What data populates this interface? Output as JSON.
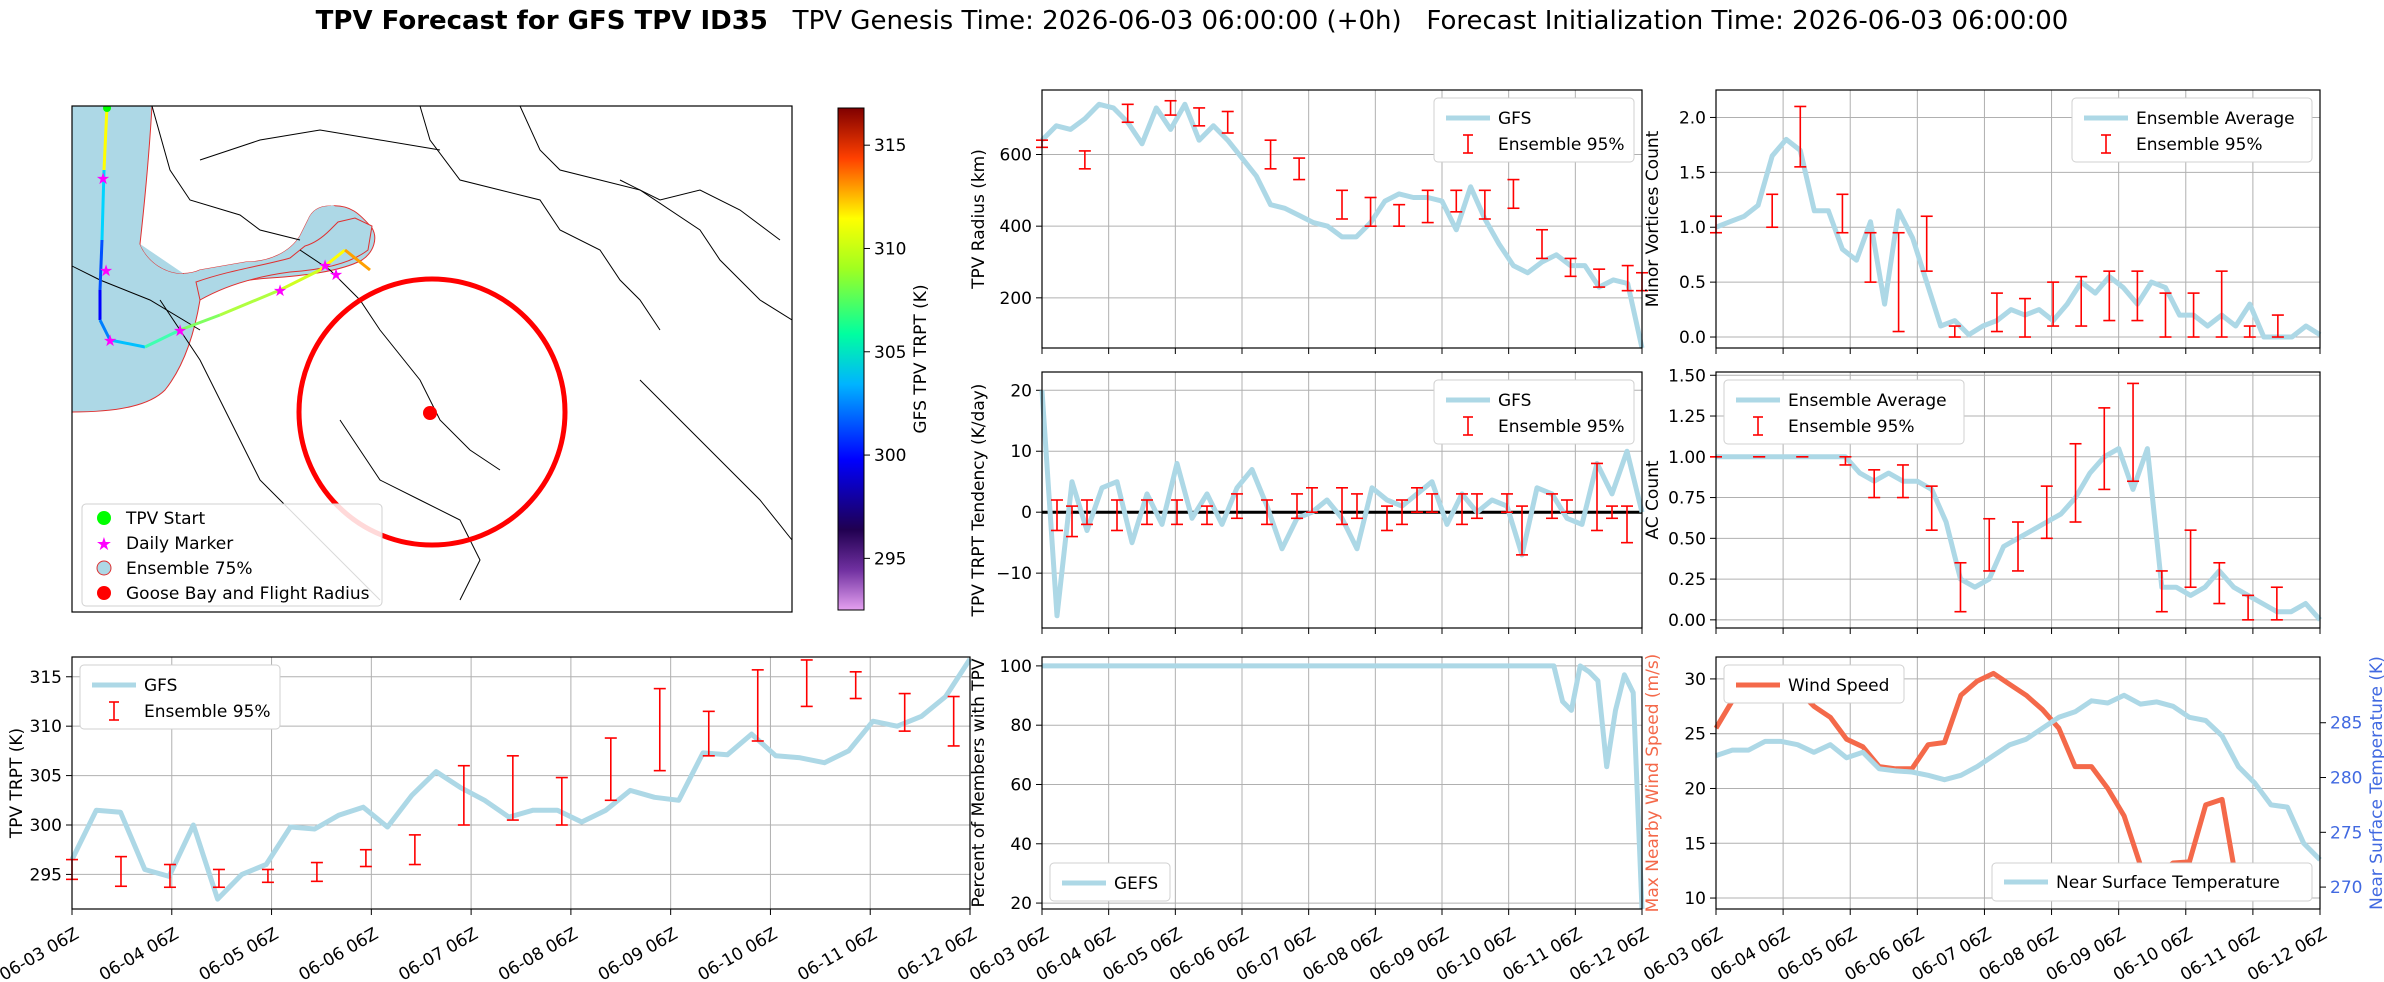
{
  "title": {
    "bold": "TPV Forecast for GFS TPV ID35",
    "rest": "   TPV Genesis Time: 2026-06-03 06:00:00 (+0h)   Forecast Initialization Time: 2026-06-03 06:00:00"
  },
  "colors": {
    "gfs_line": "#add8e6",
    "errorbar": "#ff0000",
    "wind": "#f4694a",
    "temp_axis": "#4169e1",
    "ensemble_fill": "#add8e6",
    "goose_bay": "#ff0000",
    "start_marker": "#00ff00",
    "daily_marker": "#ff00ff"
  },
  "map": {
    "colorbar_label": "GFS TPV TRPT (K)",
    "colorbar_ticks": [
      295,
      300,
      305,
      310,
      315
    ],
    "colorbar_range": [
      292.5,
      316.8
    ],
    "legend": [
      {
        "label": "TPV Start",
        "icon": "green-circle"
      },
      {
        "label": "Daily Marker",
        "icon": "magenta-star"
      },
      {
        "label": "Ensemble 75%",
        "icon": "lightblue-circle"
      },
      {
        "label": "Goose Bay and Flight Radius",
        "icon": "red-circle"
      }
    ]
  },
  "chart_data": [
    {
      "id": "radius",
      "type": "line",
      "ylabel": "TPV Radius (km)",
      "ylim": [
        60,
        780
      ],
      "yticks": [
        200,
        400,
        600
      ],
      "legend": [
        "GFS",
        "Ensemble 95%"
      ],
      "series": [
        {
          "name": "GFS",
          "values": [
            640,
            680,
            670,
            700,
            740,
            730,
            690,
            630,
            730,
            670,
            740,
            640,
            680,
            640,
            590,
            540,
            460,
            450,
            430,
            410,
            400,
            370,
            370,
            410,
            470,
            490,
            480,
            480,
            470,
            390,
            510,
            420,
            350,
            290,
            270,
            300,
            320,
            290,
            290,
            230,
            250,
            240,
            60
          ]
        }
      ],
      "errorbars": [
        {
          "i": 0,
          "lo": 620,
          "hi": 640
        },
        {
          "i": 3,
          "lo": 560,
          "hi": 610
        },
        {
          "i": 6,
          "lo": 690,
          "hi": 740
        },
        {
          "i": 9,
          "lo": 710,
          "hi": 750
        },
        {
          "i": 11,
          "lo": 680,
          "hi": 730
        },
        {
          "i": 13,
          "lo": 660,
          "hi": 720
        },
        {
          "i": 16,
          "lo": 560,
          "hi": 640
        },
        {
          "i": 18,
          "lo": 530,
          "hi": 590
        },
        {
          "i": 21,
          "lo": 420,
          "hi": 500
        },
        {
          "i": 23,
          "lo": 400,
          "hi": 480
        },
        {
          "i": 25,
          "lo": 400,
          "hi": 460
        },
        {
          "i": 27,
          "lo": 410,
          "hi": 500
        },
        {
          "i": 29,
          "lo": 440,
          "hi": 500
        },
        {
          "i": 31,
          "lo": 420,
          "hi": 500
        },
        {
          "i": 33,
          "lo": 450,
          "hi": 530
        },
        {
          "i": 35,
          "lo": 310,
          "hi": 390
        },
        {
          "i": 37,
          "lo": 260,
          "hi": 310
        },
        {
          "i": 39,
          "lo": 230,
          "hi": 280
        },
        {
          "i": 41,
          "lo": 220,
          "hi": 290
        },
        {
          "i": 42,
          "lo": 220,
          "hi": 270
        }
      ]
    },
    {
      "id": "minor",
      "type": "line",
      "ylabel": "Minor Vortices Count",
      "ylim": [
        -0.1,
        2.25
      ],
      "yticks": [
        0.0,
        0.5,
        1.0,
        1.5,
        2.0
      ],
      "legend": [
        "Ensemble Average",
        "Ensemble 95%"
      ],
      "series": [
        {
          "name": "Ensemble Average",
          "values": [
            1.0,
            1.05,
            1.1,
            1.2,
            1.65,
            1.8,
            1.7,
            1.15,
            1.15,
            0.8,
            0.7,
            1.05,
            0.3,
            1.15,
            0.9,
            0.5,
            0.1,
            0.15,
            0.02,
            0.1,
            0.15,
            0.25,
            0.2,
            0.25,
            0.15,
            0.3,
            0.5,
            0.4,
            0.55,
            0.45,
            0.3,
            0.5,
            0.45,
            0.2,
            0.2,
            0.1,
            0.2,
            0.1,
            0.3,
            0.0,
            0.0,
            0.0,
            0.1,
            0.02
          ]
        }
      ],
      "errorbars": [
        {
          "i": 0,
          "lo": 0.95,
          "hi": 1.1
        },
        {
          "i": 4,
          "lo": 1.0,
          "hi": 1.3
        },
        {
          "i": 6,
          "lo": 1.55,
          "hi": 2.1
        },
        {
          "i": 9,
          "lo": 0.95,
          "hi": 1.3
        },
        {
          "i": 11,
          "lo": 0.5,
          "hi": 0.95
        },
        {
          "i": 13,
          "lo": 0.05,
          "hi": 0.95
        },
        {
          "i": 15,
          "lo": 0.6,
          "hi": 1.1
        },
        {
          "i": 17,
          "lo": 0.0,
          "hi": 0.1
        },
        {
          "i": 20,
          "lo": 0.05,
          "hi": 0.4
        },
        {
          "i": 22,
          "lo": 0.0,
          "hi": 0.35
        },
        {
          "i": 24,
          "lo": 0.1,
          "hi": 0.5
        },
        {
          "i": 26,
          "lo": 0.1,
          "hi": 0.55
        },
        {
          "i": 28,
          "lo": 0.15,
          "hi": 0.6
        },
        {
          "i": 30,
          "lo": 0.15,
          "hi": 0.6
        },
        {
          "i": 32,
          "lo": 0.0,
          "hi": 0.4
        },
        {
          "i": 34,
          "lo": 0.0,
          "hi": 0.4
        },
        {
          "i": 36,
          "lo": 0.0,
          "hi": 0.6
        },
        {
          "i": 38,
          "lo": 0.0,
          "hi": 0.1
        },
        {
          "i": 40,
          "lo": 0.0,
          "hi": 0.2
        }
      ]
    },
    {
      "id": "tendency",
      "type": "line",
      "ylabel": "TPV TRPT Tendency (K/day)",
      "ylim": [
        -19,
        23
      ],
      "yticks": [
        -10,
        0,
        10,
        20
      ],
      "legend": [
        "GFS",
        "Ensemble 95%"
      ],
      "zero_line": true,
      "series": [
        {
          "name": "GFS",
          "values": [
            20,
            -17,
            5,
            -3,
            4,
            5,
            -5,
            3,
            -2,
            8,
            -1,
            3,
            -2,
            4,
            7,
            1,
            -6,
            -1,
            0,
            2,
            -1,
            -6,
            4,
            2,
            1,
            3,
            5,
            -2,
            3,
            0,
            2,
            1,
            -7,
            4,
            3,
            -1,
            -2,
            8,
            3,
            10,
            0
          ]
        }
      ],
      "errorbars": [
        {
          "i": 1,
          "lo": -3,
          "hi": 2
        },
        {
          "i": 2,
          "lo": -4,
          "hi": 1
        },
        {
          "i": 3,
          "lo": -2,
          "hi": 2
        },
        {
          "i": 5,
          "lo": -3,
          "hi": 2
        },
        {
          "i": 7,
          "lo": -2,
          "hi": 2
        },
        {
          "i": 9,
          "lo": -2,
          "hi": 2
        },
        {
          "i": 11,
          "lo": -2,
          "hi": 1
        },
        {
          "i": 13,
          "lo": -1,
          "hi": 3
        },
        {
          "i": 15,
          "lo": -2,
          "hi": 2
        },
        {
          "i": 17,
          "lo": -1,
          "hi": 3
        },
        {
          "i": 18,
          "lo": 0,
          "hi": 4
        },
        {
          "i": 20,
          "lo": -2,
          "hi": 4
        },
        {
          "i": 21,
          "lo": -1,
          "hi": 3
        },
        {
          "i": 23,
          "lo": -3,
          "hi": 1
        },
        {
          "i": 24,
          "lo": -2,
          "hi": 2
        },
        {
          "i": 25,
          "lo": 0,
          "hi": 4
        },
        {
          "i": 26,
          "lo": 0,
          "hi": 3
        },
        {
          "i": 28,
          "lo": -2,
          "hi": 3
        },
        {
          "i": 29,
          "lo": -1,
          "hi": 3
        },
        {
          "i": 31,
          "lo": 0,
          "hi": 3
        },
        {
          "i": 32,
          "lo": -7,
          "hi": 1
        },
        {
          "i": 34,
          "lo": -1,
          "hi": 3
        },
        {
          "i": 35,
          "lo": 0,
          "hi": 2
        },
        {
          "i": 37,
          "lo": -3,
          "hi": 8
        },
        {
          "i": 38,
          "lo": -1,
          "hi": 1
        },
        {
          "i": 39,
          "lo": -5,
          "hi": 1
        }
      ]
    },
    {
      "id": "ac",
      "type": "line",
      "ylabel": "AC Count",
      "ylim": [
        -0.05,
        1.52
      ],
      "yticks": [
        0.0,
        0.25,
        0.5,
        0.75,
        1.0,
        1.25,
        1.5
      ],
      "legend": [
        "Ensemble Average",
        "Ensemble 95%"
      ],
      "series": [
        {
          "name": "Ensemble Average",
          "values": [
            1.0,
            1.0,
            1.0,
            1.0,
            1.0,
            1.0,
            1.0,
            1.0,
            1.0,
            1.0,
            0.9,
            0.85,
            0.9,
            0.85,
            0.85,
            0.8,
            0.6,
            0.25,
            0.2,
            0.25,
            0.45,
            0.5,
            0.55,
            0.6,
            0.65,
            0.75,
            0.9,
            1.0,
            1.05,
            0.8,
            1.05,
            0.2,
            0.2,
            0.15,
            0.2,
            0.3,
            0.2,
            0.15,
            0.1,
            0.05,
            0.05,
            0.1,
            0.0
          ]
        }
      ],
      "errorbars": [
        {
          "i": 0,
          "lo": 1.0,
          "hi": 1.0
        },
        {
          "i": 3,
          "lo": 1.0,
          "hi": 1.0
        },
        {
          "i": 6,
          "lo": 1.0,
          "hi": 1.0
        },
        {
          "i": 9,
          "lo": 0.95,
          "hi": 1.0
        },
        {
          "i": 11,
          "lo": 0.75,
          "hi": 0.92
        },
        {
          "i": 13,
          "lo": 0.75,
          "hi": 0.95
        },
        {
          "i": 15,
          "lo": 0.55,
          "hi": 0.82
        },
        {
          "i": 17,
          "lo": 0.05,
          "hi": 0.35
        },
        {
          "i": 19,
          "lo": 0.3,
          "hi": 0.62
        },
        {
          "i": 21,
          "lo": 0.3,
          "hi": 0.6
        },
        {
          "i": 23,
          "lo": 0.5,
          "hi": 0.82
        },
        {
          "i": 25,
          "lo": 0.6,
          "hi": 1.08
        },
        {
          "i": 27,
          "lo": 0.8,
          "hi": 1.3
        },
        {
          "i": 29,
          "lo": 0.85,
          "hi": 1.45
        },
        {
          "i": 31,
          "lo": 0.05,
          "hi": 0.3
        },
        {
          "i": 33,
          "lo": 0.2,
          "hi": 0.55
        },
        {
          "i": 35,
          "lo": 0.1,
          "hi": 0.35
        },
        {
          "i": 37,
          "lo": 0.0,
          "hi": 0.15
        },
        {
          "i": 39,
          "lo": 0.0,
          "hi": 0.2
        }
      ]
    },
    {
      "id": "trpt",
      "type": "line",
      "ylabel": "TPV TRPT (K)",
      "ylim": [
        291.5,
        317
      ],
      "yticks": [
        295,
        300,
        305,
        310,
        315
      ],
      "xticks": [
        "06-03 06Z",
        "06-04 06Z",
        "06-05 06Z",
        "06-06 06Z",
        "06-07 06Z",
        "06-08 06Z",
        "06-09 06Z",
        "06-10 06Z",
        "06-11 06Z",
        "06-12 06Z"
      ],
      "legend": [
        "GFS",
        "Ensemble 95%"
      ],
      "series": [
        {
          "name": "GFS",
          "values": [
            296.5,
            301.5,
            301.3,
            295.5,
            294.8,
            300.0,
            292.5,
            295.0,
            296.0,
            299.8,
            299.6,
            301.0,
            301.8,
            299.8,
            303.0,
            305.4,
            303.8,
            302.5,
            300.8,
            301.5,
            301.5,
            300.3,
            301.5,
            303.5,
            302.8,
            302.5,
            307.3,
            307.1,
            309.2,
            307.0,
            306.8,
            306.3,
            307.5,
            310.5,
            310.0,
            311.0,
            313.0,
            316.8
          ]
        }
      ],
      "errorbars": [
        {
          "i": 0,
          "lo": 294.5,
          "hi": 296.5
        },
        {
          "i": 3,
          "lo": 293.8,
          "hi": 296.8
        },
        {
          "i": 6,
          "lo": 293.7,
          "hi": 296.0
        },
        {
          "i": 9,
          "lo": 293.7,
          "hi": 295.5
        },
        {
          "i": 12,
          "lo": 294.2,
          "hi": 295.5
        },
        {
          "i": 15,
          "lo": 294.3,
          "hi": 296.2
        },
        {
          "i": 18,
          "lo": 295.8,
          "hi": 297.5
        },
        {
          "i": 21,
          "lo": 296.0,
          "hi": 299.0
        },
        {
          "i": 24,
          "lo": 300.0,
          "hi": 306.0
        },
        {
          "i": 27,
          "lo": 300.5,
          "hi": 307.0
        },
        {
          "i": 30,
          "lo": 300.0,
          "hi": 304.8
        },
        {
          "i": 33,
          "lo": 302.5,
          "hi": 308.8
        },
        {
          "i": 36,
          "lo": 305.5,
          "hi": 313.8
        },
        {
          "i": 39,
          "lo": 307.0,
          "hi": 311.5
        },
        {
          "i": 42,
          "lo": 308.5,
          "hi": 315.7
        },
        {
          "i": 45,
          "lo": 312.0,
          "hi": 316.7
        },
        {
          "i": 48,
          "lo": 312.8,
          "hi": 315.5
        },
        {
          "i": 51,
          "lo": 309.5,
          "hi": 313.3
        },
        {
          "i": 54,
          "lo": 308.0,
          "hi": 313.0
        }
      ]
    },
    {
      "id": "percent",
      "type": "line",
      "ylabel": "Percent of Members with TPV",
      "ylim": [
        18,
        103
      ],
      "yticks": [
        20,
        40,
        60,
        80,
        100
      ],
      "xticks": [
        "06-03 06Z",
        "06-04 06Z",
        "06-05 06Z",
        "06-06 06Z",
        "06-07 06Z",
        "06-08 06Z",
        "06-09 06Z",
        "06-10 06Z",
        "06-11 06Z",
        "06-12 06Z"
      ],
      "legend": [
        "GEFS"
      ],
      "series": [
        {
          "name": "GEFS",
          "values": [
            100,
            100,
            100,
            100,
            100,
            100,
            100,
            100,
            100,
            100,
            100,
            100,
            100,
            100,
            100,
            100,
            100,
            100,
            100,
            100,
            100,
            100,
            100,
            100,
            100,
            100,
            100,
            100,
            100,
            100,
            100,
            100,
            100,
            100,
            100,
            100,
            100,
            100,
            100,
            100,
            100,
            100,
            100,
            100,
            100,
            100,
            100,
            100,
            100,
            100,
            100,
            100,
            100,
            100,
            100,
            100,
            100,
            100,
            100,
            88,
            85,
            100,
            98,
            95,
            66,
            85,
            97,
            91,
            18
          ]
        }
      ]
    },
    {
      "id": "wind_temp",
      "type": "line",
      "ylabel": "Max Nearby Wind Speed (m/s)",
      "ylabel_right": "Near Surface Temperature (K)",
      "ylim": [
        9,
        32
      ],
      "yticks": [
        10,
        15,
        20,
        25,
        30
      ],
      "ylim_right": [
        268,
        291
      ],
      "yticks_right": [
        270,
        275,
        280,
        285
      ],
      "xticks": [
        "06-03 06Z",
        "06-04 06Z",
        "06-05 06Z",
        "06-06 06Z",
        "06-07 06Z",
        "06-08 06Z",
        "06-09 06Z",
        "06-10 06Z",
        "06-11 06Z",
        "06-12 06Z"
      ],
      "legend": [
        "Wind Speed"
      ],
      "legend_right": [
        "Near Surface Temperature"
      ],
      "series": [
        {
          "name": "Wind Speed",
          "values": [
            25.5,
            28.0,
            30.2,
            31.0,
            30.3,
            29.0,
            27.5,
            26.5,
            24.5,
            23.8,
            22.0,
            21.8,
            21.8,
            24.0,
            24.2,
            28.5,
            29.8,
            30.5,
            29.5,
            28.5,
            27.2,
            25.5,
            22.0,
            22.0,
            20.0,
            17.5,
            13.0,
            12.0,
            13.2,
            13.3,
            18.5,
            19.0,
            10.5,
            null,
            null,
            null,
            null,
            null
          ]
        },
        {
          "name": "Near Surface Temperature",
          "axis": "right",
          "values": [
            282.0,
            282.5,
            282.5,
            283.3,
            283.3,
            283.0,
            282.3,
            283.0,
            281.8,
            282.3,
            280.8,
            280.6,
            280.5,
            280.2,
            279.8,
            280.2,
            281.0,
            282.0,
            283.0,
            283.5,
            284.5,
            285.5,
            286.0,
            287.0,
            286.8,
            287.5,
            286.7,
            286.9,
            286.5,
            285.5,
            285.2,
            283.8,
            281.0,
            279.5,
            277.5,
            277.3,
            274.0,
            272.5
          ]
        }
      ]
    }
  ]
}
